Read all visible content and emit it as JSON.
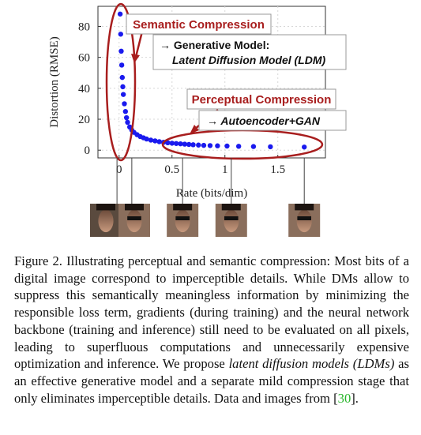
{
  "chart_data": {
    "type": "scatter",
    "xlabel": "Rate (bits/dim)",
    "ylabel": "Distortion (RMSE)",
    "xlim": [
      -0.2,
      1.95
    ],
    "ylim": [
      -5,
      93
    ],
    "x_ticks": [
      0,
      0.5,
      1,
      1.5
    ],
    "x_tick_labels": [
      "0",
      "0.5",
      "1",
      "1.5"
    ],
    "y_ticks": [
      0,
      20,
      40,
      60,
      80
    ],
    "y_tick_labels": [
      "0",
      "20",
      "40",
      "60",
      "80"
    ],
    "grid": true,
    "color": "#1a1aee",
    "points": [
      {
        "x": 0.01,
        "y": 88
      },
      {
        "x": 0.015,
        "y": 75
      },
      {
        "x": 0.02,
        "y": 64
      },
      {
        "x": 0.025,
        "y": 55
      },
      {
        "x": 0.03,
        "y": 47
      },
      {
        "x": 0.035,
        "y": 41
      },
      {
        "x": 0.04,
        "y": 36
      },
      {
        "x": 0.05,
        "y": 30
      },
      {
        "x": 0.06,
        "y": 25
      },
      {
        "x": 0.07,
        "y": 21
      },
      {
        "x": 0.08,
        "y": 18
      },
      {
        "x": 0.1,
        "y": 15
      },
      {
        "x": 0.12,
        "y": 13
      },
      {
        "x": 0.14,
        "y": 11.5
      },
      {
        "x": 0.17,
        "y": 10
      },
      {
        "x": 0.2,
        "y": 8.8
      },
      {
        "x": 0.23,
        "y": 8
      },
      {
        "x": 0.26,
        "y": 7.2
      },
      {
        "x": 0.3,
        "y": 6.5
      },
      {
        "x": 0.34,
        "y": 6
      },
      {
        "x": 0.38,
        "y": 5.5
      },
      {
        "x": 0.42,
        "y": 5.1
      },
      {
        "x": 0.46,
        "y": 4.8
      },
      {
        "x": 0.5,
        "y": 4.5
      },
      {
        "x": 0.54,
        "y": 4.3
      },
      {
        "x": 0.58,
        "y": 4.1
      },
      {
        "x": 0.62,
        "y": 3.9
      },
      {
        "x": 0.66,
        "y": 3.7
      },
      {
        "x": 0.7,
        "y": 3.5
      },
      {
        "x": 0.75,
        "y": 3.3
      },
      {
        "x": 0.8,
        "y": 3.1
      },
      {
        "x": 0.86,
        "y": 2.95
      },
      {
        "x": 0.93,
        "y": 2.8
      },
      {
        "x": 1.02,
        "y": 2.65
      },
      {
        "x": 1.13,
        "y": 2.5
      },
      {
        "x": 1.27,
        "y": 2.35
      },
      {
        "x": 1.43,
        "y": 2.2
      },
      {
        "x": 1.75,
        "y": 2.0
      }
    ],
    "annotations": {
      "semantic_label": "Semantic Compression",
      "semantic_arrow_text": "→ Generative Model:",
      "semantic_model_text": "Latent Diffusion Model (LDM)",
      "perceptual_label": "Perceptual Compression",
      "perceptual_arrow_text": "→ Autoencoder+GAN"
    },
    "thumbnail_x": [
      -0.02,
      0.12,
      0.6,
      1.06,
      1.75
    ]
  },
  "caption": {
    "part1": "Figure 2.  Illustrating perceptual and semantic compression: Most bits of a digital image correspond to imperceptible details. While DMs allow to suppress this semantically meaningless information by minimizing the responsible loss term, gradients (during training) and the neural network backbone (training and inference) still need to be evaluated on all pixels, leading to superfluous computations and unnecessarily expensive optimization and inference. We propose ",
    "emphasis": "latent diffusion models (LDMs)",
    "part2": " as an effective generative model and a separate mild compression stage that only eliminates imperceptible details. Data and images from [",
    "ref": "30",
    "part3": "]."
  }
}
